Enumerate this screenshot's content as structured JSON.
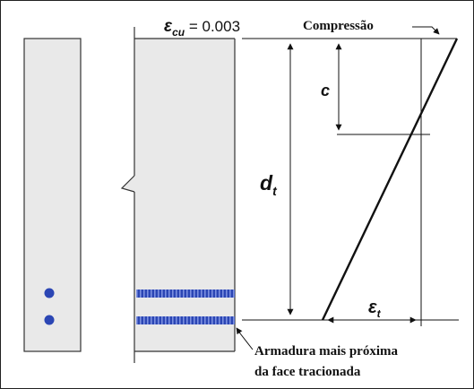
{
  "labels": {
    "strain_symbol": "ε",
    "strain_sub": "cu",
    "strain_value": " = 0.003",
    "compression": "Compressão",
    "neutral_axis": "c",
    "depth_symbol": "d",
    "depth_sub": "t",
    "tension_symbol": "ε",
    "tension_sub": "t",
    "reinforcement_line1": "Armadura mais próxima",
    "reinforcement_line2": "da face tracionada"
  },
  "colors": {
    "section_fill": "#e9e9e9",
    "section_stroke": "#333333",
    "bar_fill": "#2b46b4",
    "bar_stripe": "#7b8fe0",
    "line": "#111111"
  }
}
